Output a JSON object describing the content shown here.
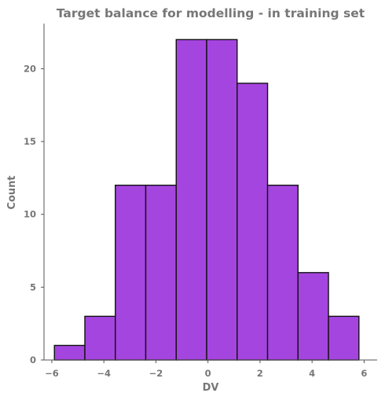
{
  "chart_data": {
    "type": "bar",
    "title": "Target balance for modelling - in training set",
    "xlabel": "DV",
    "ylabel": "Count",
    "xlim": [
      -6.3,
      6.5
    ],
    "ylim": [
      0,
      23.1
    ],
    "xticks": [
      -6,
      -4,
      -2,
      0,
      2,
      4,
      6
    ],
    "yticks": [
      0,
      5,
      10,
      15,
      20
    ],
    "bin_edges": [
      -5.9,
      -4.73,
      -3.56,
      -2.39,
      -1.22,
      -0.05,
      1.12,
      2.29,
      3.46,
      4.63,
      5.8
    ],
    "counts": [
      1,
      3,
      12,
      12,
      22,
      22,
      19,
      12,
      6,
      3
    ],
    "bar_color": "#a545e0",
    "edge_color": "#111111",
    "grid": false,
    "legend": "none"
  }
}
